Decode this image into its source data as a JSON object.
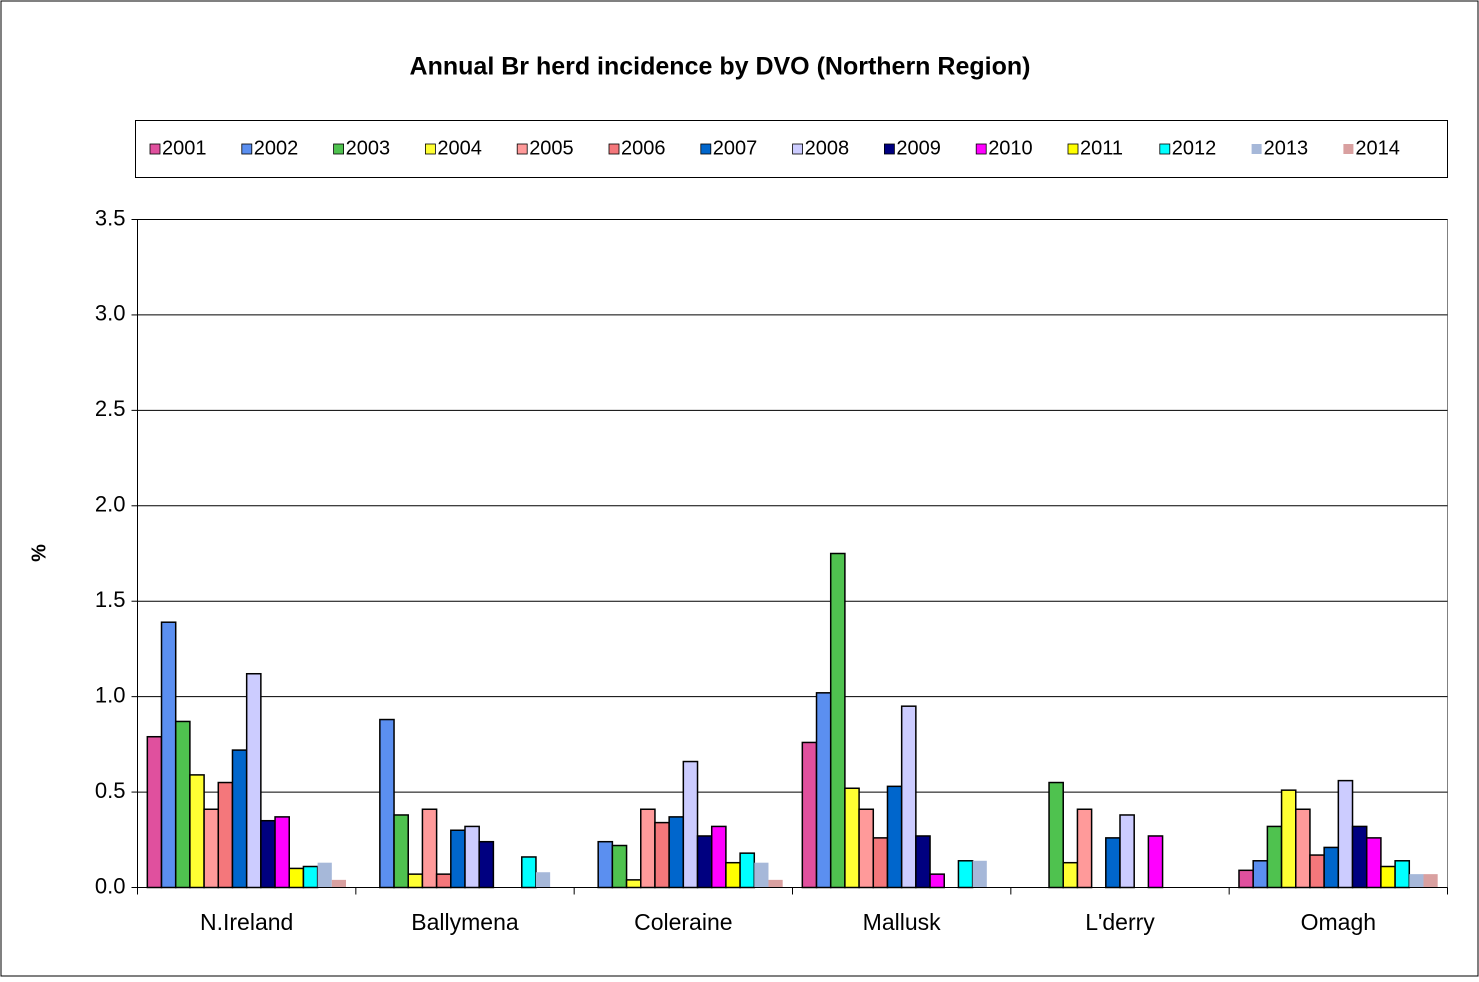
{
  "chart_data": {
    "type": "bar",
    "title": "Annual Br herd incidence by DVO (Northern Region)",
    "y_label": "%",
    "categories": [
      "N.Ireland",
      "Ballymena",
      "Coleraine",
      "Mallusk",
      "L'derry",
      "Omagh"
    ],
    "series": [
      {
        "name": "2001",
        "color": "#e0509e",
        "values": [
          0.79,
          0,
          0,
          0.76,
          0,
          0.09
        ]
      },
      {
        "name": "2002",
        "color": "#5b8ff0",
        "values": [
          1.39,
          0.88,
          0.24,
          1.02,
          0,
          0.14
        ]
      },
      {
        "name": "2003",
        "color": "#4fc24f",
        "values": [
          0.87,
          0.38,
          0.22,
          1.75,
          0.55,
          0.32
        ]
      },
      {
        "name": "2004",
        "color": "#ffff33",
        "values": [
          0.59,
          0.07,
          0.04,
          0.52,
          0.13,
          0.51
        ]
      },
      {
        "name": "2005",
        "color": "#ff9a9a",
        "values": [
          0.41,
          0.41,
          0.41,
          0.41,
          0.41,
          0.41
        ]
      },
      {
        "name": "2006",
        "color": "#f4777b",
        "values": [
          0.55,
          0.07,
          0.34,
          0.26,
          0,
          0.17
        ]
      },
      {
        "name": "2007",
        "color": "#0066cc",
        "values": [
          0.72,
          0.3,
          0.37,
          0.53,
          0.26,
          0.21
        ]
      },
      {
        "name": "2008",
        "color": "#ccccff",
        "values": [
          1.12,
          0.32,
          0.66,
          0.95,
          0.38,
          0.56
        ]
      },
      {
        "name": "2009",
        "color": "#000080",
        "values": [
          0.35,
          0.24,
          0.27,
          0.27,
          0,
          0.32
        ]
      },
      {
        "name": "2010",
        "color": "#ff00ff",
        "values": [
          0.37,
          0,
          0.32,
          0.07,
          0.27,
          0.26
        ]
      },
      {
        "name": "2011",
        "color": "#ffff00",
        "values": [
          0.1,
          0,
          0.13,
          0,
          0,
          0.11
        ]
      },
      {
        "name": "2012",
        "color": "#00ffff",
        "values": [
          0.11,
          0.16,
          0.18,
          0.14,
          0,
          0.14
        ]
      },
      {
        "name": "2013",
        "color": "#a6b8d9",
        "values": [
          0.13,
          0.08,
          0.13,
          0.14,
          0,
          0.07
        ]
      },
      {
        "name": "2014",
        "color": "#d9a0a0",
        "values": [
          0.04,
          0,
          0.04,
          0,
          0,
          0.07
        ]
      }
    ],
    "ylim": [
      0,
      3.5
    ],
    "yticks": [
      {
        "value": 0,
        "label": "0.0"
      },
      0.5,
      {
        "value": 1,
        "label": "1.0"
      },
      1.5,
      {
        "value": 2,
        "label": "2.0"
      },
      2.5,
      {
        "value": 3,
        "label": "3.0"
      },
      3.5
    ],
    "grid": true
  }
}
